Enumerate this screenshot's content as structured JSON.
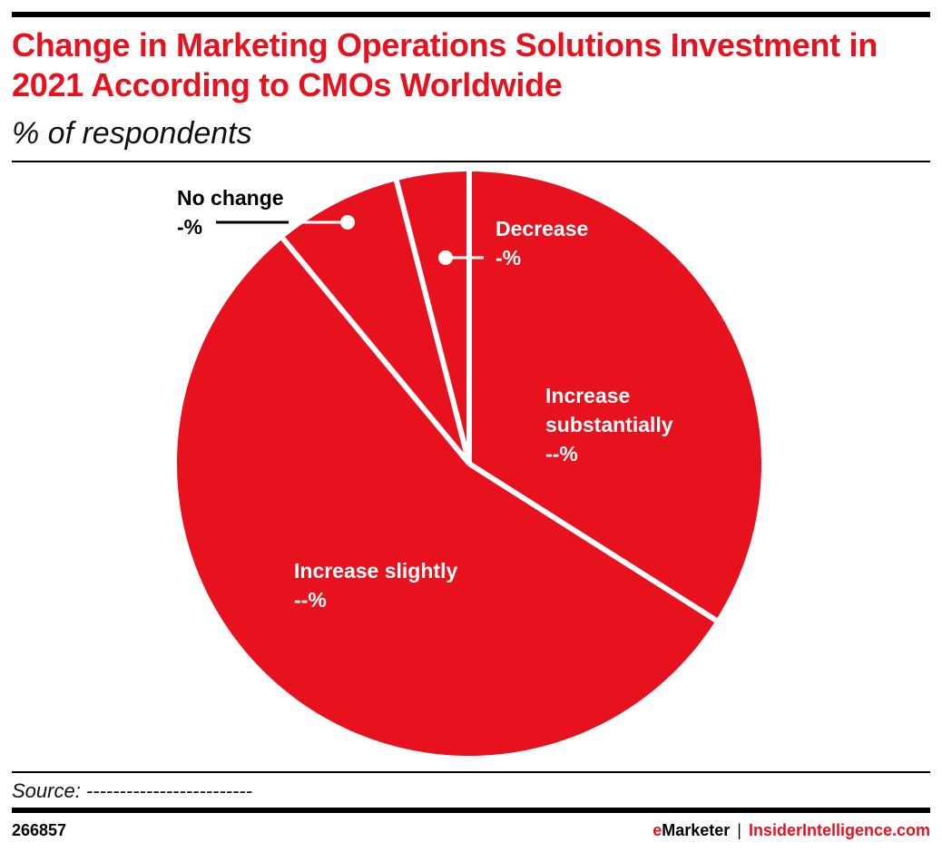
{
  "header": {
    "title": "Change in Marketing Operations Solutions Investment in 2021 According to CMOs Worldwide",
    "subtitle": "% of respondents"
  },
  "labels": {
    "no_change": {
      "name": "No change",
      "value": "-%"
    },
    "decrease": {
      "name": "Decrease",
      "value": "-%"
    },
    "increase_substantially": {
      "name_line1": "Increase",
      "name_line2": "substantially",
      "value": "--%"
    },
    "increase_slightly": {
      "name": "Increase slightly",
      "value": "--%"
    }
  },
  "footer": {
    "source": "Source: -------------------------",
    "chart_id": "266857",
    "brand_e": "e",
    "brand_marketer": "Marketer",
    "brand_separator": "|",
    "brand_site": "InsiderIntelligence.com"
  },
  "colors": {
    "slice": "#E8111E",
    "title": "#E8111E",
    "separator": "#ffffff"
  },
  "chart_data": {
    "type": "pie",
    "title": "Change in Marketing Operations Solutions Investment in 2021 According to CMOs Worldwide",
    "subtitle": "% of respondents",
    "categories": [
      "Increase substantially",
      "Increase slightly",
      "No change",
      "Decrease"
    ],
    "values": [
      34,
      55,
      7,
      4
    ],
    "value_labels": [
      "--%",
      "--%",
      "-%",
      "-%"
    ],
    "note": "Values estimated from slice angles; data labels are masked in the image",
    "start_angle_deg": 0,
    "direction": "clockwise",
    "colors": [
      "#E8111E",
      "#E8111E",
      "#E8111E",
      "#E8111E"
    ],
    "source": "Source: -------------------------",
    "chart_id": "266857"
  }
}
